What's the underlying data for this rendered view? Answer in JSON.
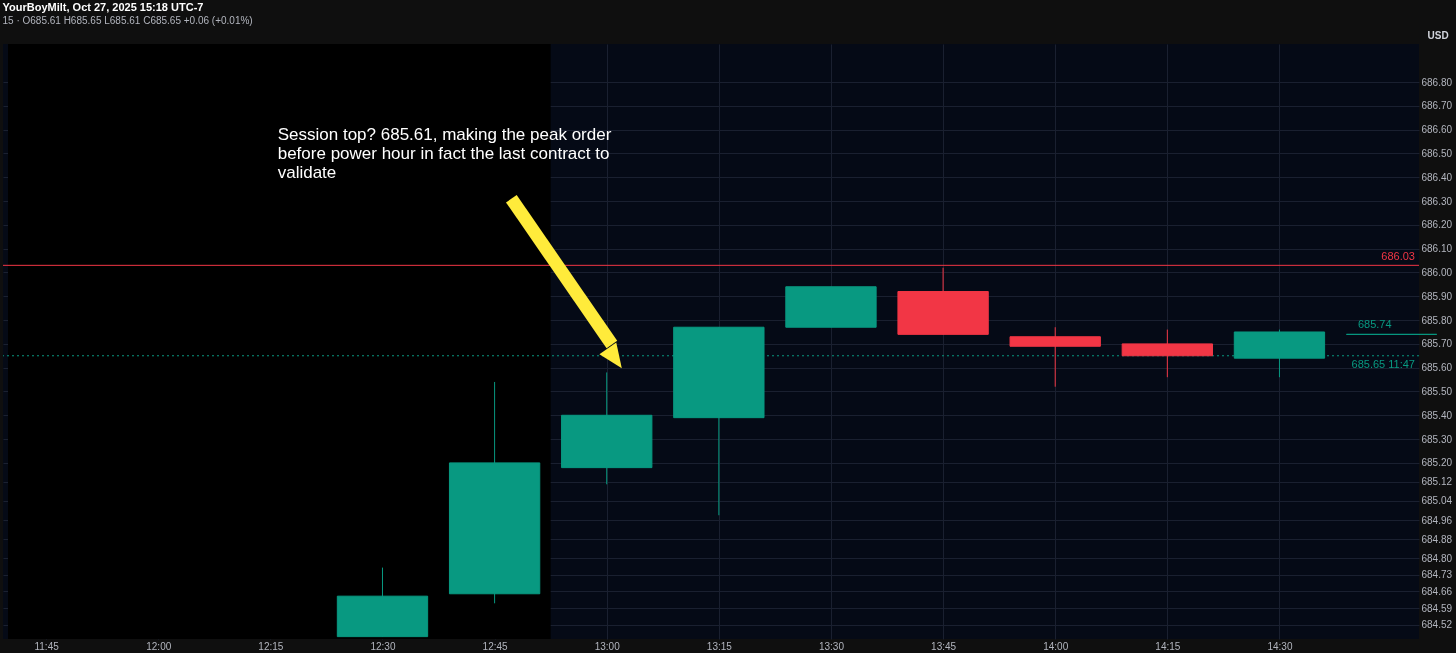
{
  "chart_data": {
    "type": "candlestick",
    "title": "YourBoyMilt, Oct 27, 2025 15:18 UTC-7",
    "subtitle": "15 · O685.61 H685.65 L685.61 C685.65 +0.06 (+0.01%)",
    "ylabel": "USD",
    "x": [
      12.5,
      12.75,
      13.0,
      13.25,
      13.5,
      13.75,
      14.0,
      14.25,
      14.5,
      14.75
    ],
    "ohlc": [
      [
        684.47,
        684.76,
        684.47,
        684.64
      ],
      [
        684.65,
        685.54,
        684.61,
        685.2
      ],
      [
        685.18,
        685.58,
        685.11,
        685.4
      ],
      [
        685.39,
        685.77,
        684.98,
        685.77
      ],
      [
        685.77,
        685.94,
        685.77,
        685.94
      ],
      [
        685.92,
        686.02,
        685.74,
        685.74
      ],
      [
        685.73,
        685.77,
        685.52,
        685.69
      ],
      [
        685.7,
        685.76,
        685.56,
        685.65
      ],
      [
        685.64,
        685.76,
        685.56,
        685.75
      ],
      [
        685.74,
        685.74,
        685.74,
        685.74
      ]
    ],
    "colors": [
      "#089981",
      "#089981",
      "#089981",
      "#089981",
      "#089981",
      "#f23645",
      "#f23645",
      "#f23645",
      "#089981",
      "#089981"
    ],
    "xlim": [
      11.665,
      14.8
    ],
    "xticks": [
      {
        "value": 11.75,
        "label": "11:45"
      },
      {
        "value": 12.0,
        "label": "12:00"
      },
      {
        "value": 12.25,
        "label": "12:15"
      },
      {
        "value": 12.5,
        "label": "12:30"
      },
      {
        "value": 12.75,
        "label": "12:45"
      },
      {
        "value": 13.0,
        "label": "13:00"
      },
      {
        "value": 13.25,
        "label": "13:15"
      },
      {
        "value": 13.5,
        "label": "13:30"
      },
      {
        "value": 13.75,
        "label": "13:45"
      },
      {
        "value": 14.0,
        "label": "14:00"
      },
      {
        "value": 14.25,
        "label": "14:15"
      },
      {
        "value": 14.5,
        "label": "14:30"
      }
    ],
    "ylim": [
      684.46,
      686.96
    ],
    "yticks": [
      {
        "value": 684.52,
        "label": "684.52"
      },
      {
        "value": 684.59,
        "label": "684.59"
      },
      {
        "value": 684.66,
        "label": "684.66"
      },
      {
        "value": 684.73,
        "label": "684.73"
      },
      {
        "value": 684.8,
        "label": "684.80"
      },
      {
        "value": 684.88,
        "label": "684.88"
      },
      {
        "value": 684.96,
        "label": "684.96"
      },
      {
        "value": 685.04,
        "label": "685.04"
      },
      {
        "value": 685.12,
        "label": "685.12"
      },
      {
        "value": 685.2,
        "label": "685.20"
      },
      {
        "value": 685.3,
        "label": "685.30"
      },
      {
        "value": 685.4,
        "label": "685.40"
      },
      {
        "value": 685.5,
        "label": "685.50"
      },
      {
        "value": 685.6,
        "label": "685.60"
      },
      {
        "value": 685.7,
        "label": "685.70"
      },
      {
        "value": 685.8,
        "label": "685.80"
      },
      {
        "value": 685.9,
        "label": "685.90"
      },
      {
        "value": 686.0,
        "label": "686.00"
      },
      {
        "value": 686.1,
        "label": "686.10"
      },
      {
        "value": 686.2,
        "label": "686.20"
      },
      {
        "value": 686.3,
        "label": "686.30"
      },
      {
        "value": 686.4,
        "label": "686.40"
      },
      {
        "value": 686.5,
        "label": "686.50"
      },
      {
        "value": 686.6,
        "label": "686.60"
      },
      {
        "value": 686.7,
        "label": "686.70"
      },
      {
        "value": 686.8,
        "label": "686.80"
      }
    ],
    "grid": true,
    "bands": [
      {
        "axis": "x",
        "from": 11.665,
        "to": 12.875,
        "color": "#000000"
      }
    ],
    "ref_lines": [
      {
        "axis": "y",
        "value": 686.03,
        "label": "686.03",
        "color": "#f23645",
        "line_style": "solid"
      },
      {
        "axis": "y",
        "value": 685.65,
        "label": "685.65 11:47",
        "color": "#089981",
        "line_style": "dotted"
      }
    ],
    "annotations": [
      "Session top? 685.61, making the peak order before power hour in fact the last contract to validate",
      {
        "text": "685.74",
        "x": 14.75,
        "y": 685.74
      }
    ]
  }
}
